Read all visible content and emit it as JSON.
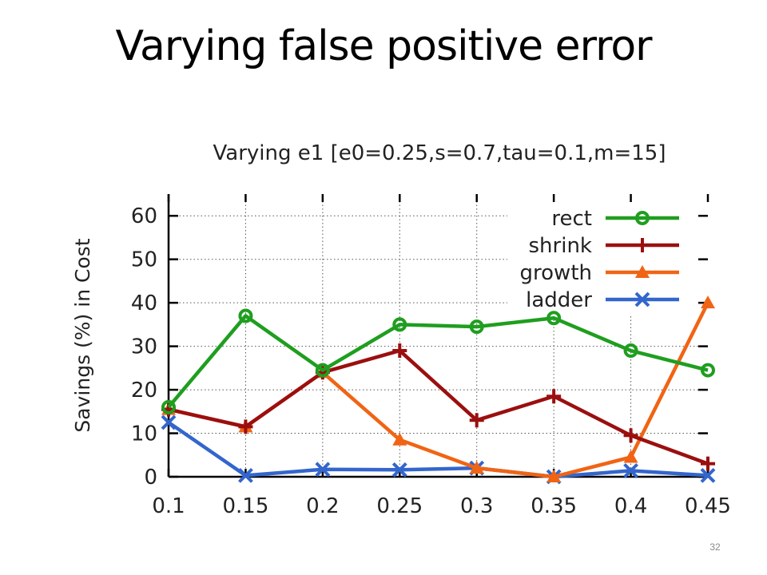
{
  "slide": {
    "title": "Varying false positive error",
    "number": "32"
  },
  "chart_data": {
    "type": "line",
    "title": "Varying e1 [e0=0.25,s=0.7,tau=0.1,m=15]",
    "xlabel": "",
    "ylabel": "Savings (%) in Cost",
    "x": [
      0.1,
      0.15,
      0.2,
      0.25,
      0.3,
      0.35,
      0.4,
      0.45
    ],
    "x_tick_labels": [
      "0.1",
      "0.15",
      "0.2",
      "0.25",
      "0.3",
      "0.35",
      "0.4",
      "0.45"
    ],
    "y_ticks": [
      0,
      10,
      20,
      30,
      40,
      50,
      60
    ],
    "ylim": [
      0,
      65
    ],
    "grid": true,
    "legend_position": "top-right",
    "series": [
      {
        "name": "rect",
        "marker": "circle",
        "color": "#1f9e1f",
        "values": [
          16,
          37,
          24.5,
          35,
          34.5,
          36.5,
          29,
          24.5
        ]
      },
      {
        "name": "shrink",
        "marker": "plus",
        "color": "#9b0f0f",
        "values": [
          15.5,
          11.5,
          24,
          29,
          13,
          18.5,
          9.5,
          3
        ]
      },
      {
        "name": "growth",
        "marker": "triangle",
        "color": "#f06414",
        "values": [
          15.5,
          11.5,
          24,
          8.5,
          2,
          0,
          4.5,
          40
        ]
      },
      {
        "name": "ladder",
        "marker": "x",
        "color": "#3366cc",
        "values": [
          12.5,
          0.3,
          1.7,
          1.6,
          2,
          0,
          1.4,
          0.3
        ]
      }
    ]
  }
}
